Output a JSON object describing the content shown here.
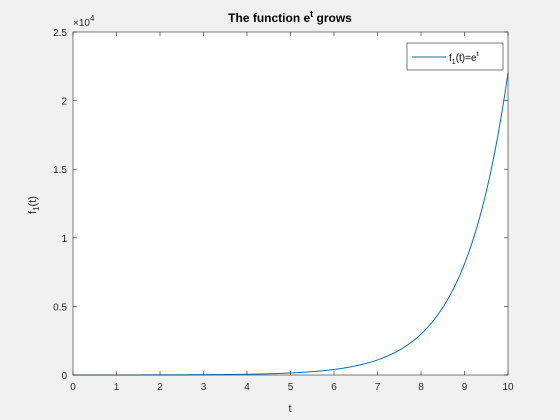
{
  "chart_data": {
    "type": "line",
    "title": {
      "base": "The function e",
      "sup": "t",
      "tail": " grows"
    },
    "xlabel": "t",
    "ylabel": {
      "base": "f",
      "sub": "1",
      "tail": "(t)"
    },
    "xlim": [
      0,
      10
    ],
    "ylim": [
      0,
      25000
    ],
    "xticks": [
      0,
      1,
      2,
      3,
      4,
      5,
      6,
      7,
      8,
      9,
      10
    ],
    "xtick_labels": [
      "0",
      "1",
      "2",
      "3",
      "4",
      "5",
      "6",
      "7",
      "8",
      "9",
      "10"
    ],
    "yticks": [
      0,
      5000,
      10000,
      15000,
      20000,
      25000
    ],
    "ytick_labels": [
      "0",
      "0.5",
      "1",
      "1.5",
      "2",
      "2.5"
    ],
    "y_exponent": {
      "base": "×10",
      "sup": "4"
    },
    "grid": false,
    "legend_position": "top-right",
    "series": [
      {
        "name": {
          "base": "f",
          "sub": "1",
          "mid": "(t)=e",
          "sup": "t"
        },
        "function": "exp",
        "x": [
          0,
          0.5,
          1,
          1.5,
          2,
          2.5,
          3,
          3.5,
          4,
          4.5,
          5,
          5.5,
          6,
          6.5,
          7,
          7.5,
          8,
          8.5,
          9,
          9.5,
          10
        ],
        "y": [
          1,
          1.65,
          2.72,
          4.48,
          7.39,
          12.18,
          20.09,
          33.12,
          54.6,
          90.02,
          148.41,
          244.69,
          403.43,
          665.14,
          1096.63,
          1808.04,
          2980.96,
          4914.77,
          8103.08,
          13359.73,
          22026.47
        ],
        "color": "#0072bd"
      }
    ]
  }
}
